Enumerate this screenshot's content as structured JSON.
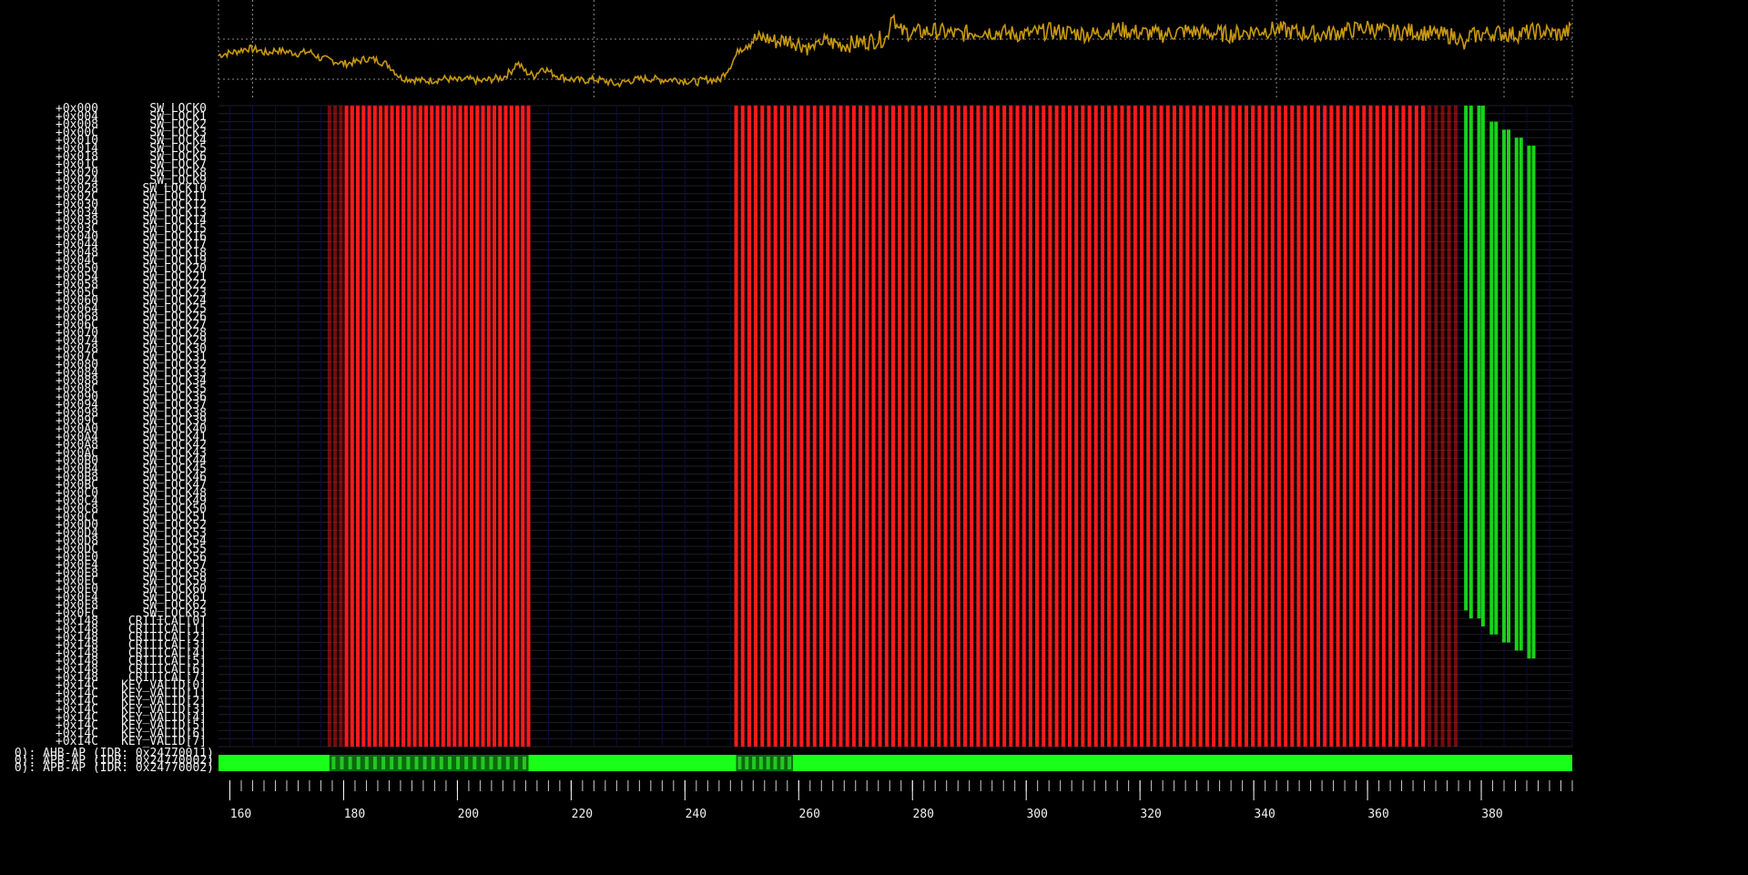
{
  "chart_data": {
    "type": "heatmap",
    "title": "",
    "xlabel": "",
    "ylabel": "",
    "x_range": [
      158,
      396
    ],
    "x_ticks": [
      160,
      180,
      200,
      220,
      240,
      260,
      280,
      300,
      320,
      340,
      360,
      380
    ],
    "grid": true,
    "colors": {
      "background": "#000000",
      "power_trace": "#c8990f",
      "write_event": "#ff1a1a",
      "read_event": "#19d219",
      "bus_active": "#1aff1a",
      "row_line": "#1e1e2a",
      "column_line": "#0c0c3c",
      "grid": "#8a8a8a"
    },
    "rows": [
      {
        "offset": "+0x000",
        "name": "SW_LOCK0"
      },
      {
        "offset": "+0x004",
        "name": "SW_LOCK1"
      },
      {
        "offset": "+0x008",
        "name": "SW_LOCK2"
      },
      {
        "offset": "+0x00C",
        "name": "SW_LOCK3"
      },
      {
        "offset": "+0x010",
        "name": "SW_LOCK4"
      },
      {
        "offset": "+0x014",
        "name": "SW_LOCK5"
      },
      {
        "offset": "+0x018",
        "name": "SW_LOCK6"
      },
      {
        "offset": "+0x01C",
        "name": "SW_LOCK7"
      },
      {
        "offset": "+0x020",
        "name": "SW_LOCK8"
      },
      {
        "offset": "+0x024",
        "name": "SW_LOCK9"
      },
      {
        "offset": "+0x028",
        "name": "SW_LOCK10"
      },
      {
        "offset": "+0x02C",
        "name": "SW_LOCK11"
      },
      {
        "offset": "+0x030",
        "name": "SW_LOCK12"
      },
      {
        "offset": "+0x034",
        "name": "SW_LOCK13"
      },
      {
        "offset": "+0x038",
        "name": "SW_LOCK14"
      },
      {
        "offset": "+0x03C",
        "name": "SW_LOCK15"
      },
      {
        "offset": "+0x040",
        "name": "SW_LOCK16"
      },
      {
        "offset": "+0x044",
        "name": "SW_LOCK17"
      },
      {
        "offset": "+0x048",
        "name": "SW_LOCK18"
      },
      {
        "offset": "+0x04C",
        "name": "SW_LOCK19"
      },
      {
        "offset": "+0x050",
        "name": "SW_LOCK20"
      },
      {
        "offset": "+0x054",
        "name": "SW_LOCK21"
      },
      {
        "offset": "+0x058",
        "name": "SW_LOCK22"
      },
      {
        "offset": "+0x05C",
        "name": "SW_LOCK23"
      },
      {
        "offset": "+0x060",
        "name": "SW_LOCK24"
      },
      {
        "offset": "+0x064",
        "name": "SW_LOCK25"
      },
      {
        "offset": "+0x068",
        "name": "SW_LOCK26"
      },
      {
        "offset": "+0x06C",
        "name": "SW_LOCK27"
      },
      {
        "offset": "+0x070",
        "name": "SW_LOCK28"
      },
      {
        "offset": "+0x074",
        "name": "SW_LOCK29"
      },
      {
        "offset": "+0x078",
        "name": "SW_LOCK30"
      },
      {
        "offset": "+0x07C",
        "name": "SW_LOCK31"
      },
      {
        "offset": "+0x080",
        "name": "SW_LOCK32"
      },
      {
        "offset": "+0x084",
        "name": "SW_LOCK33"
      },
      {
        "offset": "+0x088",
        "name": "SW_LOCK34"
      },
      {
        "offset": "+0x08C",
        "name": "SW_LOCK35"
      },
      {
        "offset": "+0x090",
        "name": "SW_LOCK36"
      },
      {
        "offset": "+0x094",
        "name": "SW_LOCK37"
      },
      {
        "offset": "+0x098",
        "name": "SW_LOCK38"
      },
      {
        "offset": "+0x09C",
        "name": "SW_LOCK39"
      },
      {
        "offset": "+0x0A0",
        "name": "SW_LOCK40"
      },
      {
        "offset": "+0x0A4",
        "name": "SW_LOCK41"
      },
      {
        "offset": "+0x0A8",
        "name": "SW_LOCK42"
      },
      {
        "offset": "+0x0AC",
        "name": "SW_LOCK43"
      },
      {
        "offset": "+0x0B0",
        "name": "SW_LOCK44"
      },
      {
        "offset": "+0x0B4",
        "name": "SW_LOCK45"
      },
      {
        "offset": "+0x0B8",
        "name": "SW_LOCK46"
      },
      {
        "offset": "+0x0BC",
        "name": "SW_LOCK47"
      },
      {
        "offset": "+0x0C0",
        "name": "SW_LOCK48"
      },
      {
        "offset": "+0x0C4",
        "name": "SW_LOCK49"
      },
      {
        "offset": "+0x0C8",
        "name": "SW_LOCK50"
      },
      {
        "offset": "+0x0CC",
        "name": "SW_LOCK51"
      },
      {
        "offset": "+0x0D0",
        "name": "SW_LOCK52"
      },
      {
        "offset": "+0x0D4",
        "name": "SW_LOCK53"
      },
      {
        "offset": "+0x0D8",
        "name": "SW_LOCK54"
      },
      {
        "offset": "+0x0DC",
        "name": "SW_LOCK55"
      },
      {
        "offset": "+0x0E0",
        "name": "SW_LOCK56"
      },
      {
        "offset": "+0x0E4",
        "name": "SW_LOCK57"
      },
      {
        "offset": "+0x0E8",
        "name": "SW_LOCK58"
      },
      {
        "offset": "+0x0EC",
        "name": "SW_LOCK59"
      },
      {
        "offset": "+0x0F0",
        "name": "SW_LOCK60"
      },
      {
        "offset": "+0x0F4",
        "name": "SW_LOCK61"
      },
      {
        "offset": "+0x0F8",
        "name": "SW_LOCK62"
      },
      {
        "offset": "+0x0FC",
        "name": "SW_LOCK63"
      },
      {
        "offset": "+0x148",
        "name": "CRITICAL[0]"
      },
      {
        "offset": "+0x148",
        "name": "CRITICAL[1]"
      },
      {
        "offset": "+0x148",
        "name": "CRITICAL[2]"
      },
      {
        "offset": "+0x148",
        "name": "CRITICAL[3]"
      },
      {
        "offset": "+0x148",
        "name": "CRITICAL[4]"
      },
      {
        "offset": "+0x148",
        "name": "CRITICAL[5]"
      },
      {
        "offset": "+0x148",
        "name": "CRITICAL[6]"
      },
      {
        "offset": "+0x148",
        "name": "CRITICAL[7]"
      },
      {
        "offset": "+0x14C",
        "name": "KEY_VALID[0]"
      },
      {
        "offset": "+0x14C",
        "name": "KEY_VALID[1]"
      },
      {
        "offset": "+0x14C",
        "name": "KEY_VALID[2]"
      },
      {
        "offset": "+0x14C",
        "name": "KEY_VALID[3]"
      },
      {
        "offset": "+0x14C",
        "name": "KEY_VALID[4]"
      },
      {
        "offset": "+0x14C",
        "name": "KEY_VALID[5]"
      },
      {
        "offset": "+0x14C",
        "name": "KEY_VALID[6]"
      },
      {
        "offset": "+0x14C",
        "name": "KEY_VALID[7]"
      }
    ],
    "bus_labels": [
      "0): AHB-AP (IDR: 0x24770011)",
      "0): APB-AP (IDR: 0x24770002)",
      "0): APB-AP (IDR: 0x24770002)"
    ],
    "write_sweeps": [
      {
        "x_start": 177.5,
        "x_end": 212.5,
        "count": 36,
        "row_from": 0,
        "row_to": 79,
        "dim_lead": 3
      },
      {
        "x_start": 249.0,
        "x_end": 375.5,
        "count": 111,
        "row_from": 0,
        "row_to": 79,
        "dim_lead": 0
      }
    ],
    "read_bars": [
      {
        "x": 377.3,
        "row_from": 0,
        "row_to": 63
      },
      {
        "x": 378.2,
        "row_from": 0,
        "row_to": 64
      },
      {
        "x": 379.6,
        "row_from": 0,
        "row_to": 64
      },
      {
        "x": 380.3,
        "row_from": 0,
        "row_to": 65
      },
      {
        "x": 381.8,
        "row_from": 2,
        "row_to": 66
      },
      {
        "x": 382.6,
        "row_from": 2,
        "row_to": 66
      },
      {
        "x": 384.0,
        "row_from": 3,
        "row_to": 67
      },
      {
        "x": 384.8,
        "row_from": 3,
        "row_to": 67
      },
      {
        "x": 386.2,
        "row_from": 4,
        "row_to": 68
      },
      {
        "x": 387.0,
        "row_from": 4,
        "row_to": 68
      },
      {
        "x": 388.4,
        "row_from": 5,
        "row_to": 69
      },
      {
        "x": 389.2,
        "row_from": 5,
        "row_to": 69
      }
    ],
    "bus_dim_blocks": [
      {
        "x_start": 177.5,
        "x_end": 212.5,
        "count": 24
      },
      {
        "x_start": 249.0,
        "x_end": 259.0,
        "count": 8
      }
    ],
    "power_trace": [
      [
        158.0,
        0.4
      ],
      [
        159.5,
        0.45
      ],
      [
        161.0,
        0.5
      ],
      [
        163.0,
        0.6
      ],
      [
        165.0,
        0.55
      ],
      [
        166.5,
        0.45
      ],
      [
        168.0,
        0.55
      ],
      [
        170.0,
        0.5
      ],
      [
        172.0,
        0.45
      ],
      [
        174.0,
        0.5
      ],
      [
        176.0,
        0.3
      ],
      [
        178.0,
        0.25
      ],
      [
        180.0,
        0.15
      ],
      [
        182.0,
        0.2
      ],
      [
        184.0,
        0.3
      ],
      [
        186.0,
        0.25
      ],
      [
        188.0,
        0.1
      ],
      [
        190.0,
        -0.25
      ],
      [
        192.0,
        -0.3
      ],
      [
        194.0,
        -0.35
      ],
      [
        196.0,
        -0.32
      ],
      [
        198.0,
        -0.28
      ],
      [
        200.0,
        -0.34
      ],
      [
        202.0,
        -0.3
      ],
      [
        204.0,
        -0.36
      ],
      [
        206.0,
        -0.3
      ],
      [
        208.0,
        -0.25
      ],
      [
        209.5,
        -0.05
      ],
      [
        210.5,
        0.18
      ],
      [
        212.0,
        -0.08
      ],
      [
        213.5,
        -0.2
      ],
      [
        215.0,
        0.05
      ],
      [
        216.5,
        -0.12
      ],
      [
        218.0,
        -0.22
      ],
      [
        220.0,
        -0.3
      ],
      [
        222.0,
        -0.34
      ],
      [
        224.0,
        -0.3
      ],
      [
        226.0,
        -0.35
      ],
      [
        228.0,
        -0.45
      ],
      [
        230.0,
        -0.35
      ],
      [
        232.0,
        -0.3
      ],
      [
        234.0,
        -0.28
      ],
      [
        236.0,
        -0.32
      ],
      [
        238.0,
        -0.3
      ],
      [
        240.0,
        -0.34
      ],
      [
        242.0,
        -0.38
      ],
      [
        244.0,
        -0.3
      ],
      [
        246.0,
        -0.34
      ],
      [
        248.0,
        0.1
      ],
      [
        250.0,
        0.7
      ],
      [
        252.0,
        0.85
      ],
      [
        254.0,
        0.9
      ],
      [
        256.0,
        0.8
      ],
      [
        258.0,
        0.85
      ],
      [
        260.0,
        0.75
      ],
      [
        262.0,
        0.6
      ],
      [
        264.0,
        0.8
      ],
      [
        266.0,
        0.75
      ],
      [
        268.0,
        0.7
      ],
      [
        270.0,
        0.75
      ],
      [
        272.0,
        0.8
      ],
      [
        274.0,
        0.85
      ],
      [
        275.5,
        0.9
      ],
      [
        276.5,
        1.7
      ],
      [
        277.5,
        1.1
      ],
      [
        280.0,
        1.05
      ],
      [
        284.0,
        1.1
      ],
      [
        288.0,
        1.0
      ],
      [
        292.0,
        1.1
      ],
      [
        296.0,
        1.05
      ],
      [
        300.0,
        1.0
      ],
      [
        304.0,
        1.1
      ],
      [
        308.0,
        1.05
      ],
      [
        312.0,
        1.0
      ],
      [
        316.0,
        1.15
      ],
      [
        320.0,
        1.05
      ],
      [
        324.0,
        1.0
      ],
      [
        328.0,
        1.1
      ],
      [
        332.0,
        1.05
      ],
      [
        336.0,
        1.0
      ],
      [
        340.0,
        1.1
      ],
      [
        344.0,
        1.15
      ],
      [
        348.0,
        1.05
      ],
      [
        352.0,
        1.0
      ],
      [
        356.0,
        1.1
      ],
      [
        360.0,
        1.2
      ],
      [
        364.0,
        1.05
      ],
      [
        368.0,
        1.1
      ],
      [
        372.0,
        1.0
      ],
      [
        376.0,
        0.95
      ],
      [
        377.0,
        0.6
      ],
      [
        378.0,
        0.95
      ],
      [
        382.0,
        1.05
      ],
      [
        386.0,
        1.0
      ],
      [
        390.0,
        1.1
      ],
      [
        394.0,
        1.0
      ],
      [
        396.0,
        1.15
      ]
    ],
    "power_range": [
      -0.8,
      2.0
    ]
  }
}
